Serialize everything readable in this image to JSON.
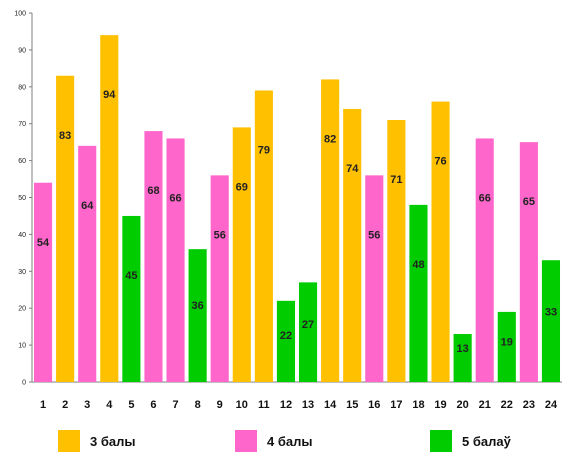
{
  "chart_data": {
    "type": "bar",
    "categories": [
      "1",
      "2",
      "3",
      "4",
      "5",
      "6",
      "7",
      "8",
      "9",
      "10",
      "11",
      "12",
      "13",
      "14",
      "15",
      "16",
      "17",
      "18",
      "19",
      "20",
      "21",
      "22",
      "23",
      "24"
    ],
    "values": [
      54,
      83,
      64,
      94,
      45,
      68,
      66,
      36,
      56,
      69,
      79,
      22,
      27,
      82,
      74,
      56,
      71,
      48,
      76,
      13,
      66,
      19,
      65,
      33
    ],
    "series_index": [
      1,
      0,
      1,
      0,
      2,
      1,
      1,
      2,
      1,
      0,
      0,
      2,
      2,
      0,
      0,
      1,
      0,
      2,
      0,
      2,
      1,
      2,
      1,
      2
    ],
    "series": [
      {
        "name": "3 балы",
        "color": "#FFC000"
      },
      {
        "name": "4 балы",
        "color": "#FF66CC"
      },
      {
        "name": "5 балаў",
        "color": "#00CC00"
      }
    ],
    "yticks": [
      "0",
      "10",
      "20",
      "30",
      "40",
      "50",
      "60",
      "70",
      "80",
      "90",
      "100"
    ],
    "ylim": [
      0,
      100
    ],
    "grid": false,
    "legend_position": "bottom",
    "title": "",
    "xlabel": "",
    "ylabel": ""
  }
}
